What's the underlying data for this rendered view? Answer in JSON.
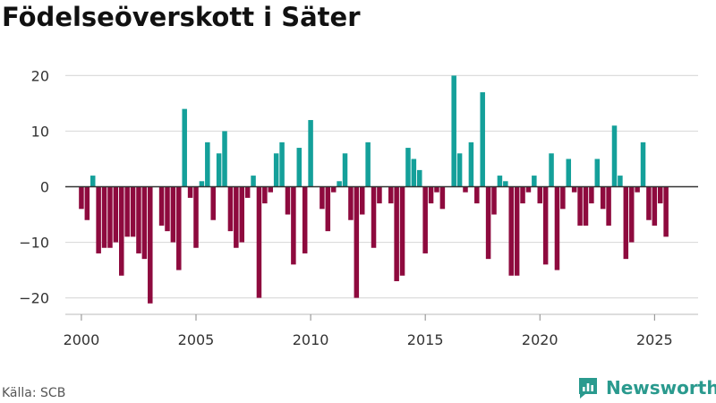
{
  "title": "Födelseöverskott i Säter",
  "source": "Källa: SCB",
  "brand": {
    "name": "Newsworthy",
    "logo_icon": "newsworthy-logo-icon"
  },
  "colors": {
    "positive": "#14a09a",
    "negative": "#8e0a3e",
    "grid": "#dcdcdc",
    "zero_line": "#333333",
    "brand": "#2a9a8e"
  },
  "chart_data": {
    "type": "bar",
    "title": "Födelseöverskott i Säter",
    "xlabel": "",
    "ylabel": "",
    "x_start": 2000.0,
    "x_step": 0.25,
    "xlim": [
      1999.3,
      2026.9
    ],
    "ylim": [
      -22,
      22
    ],
    "yticks": [
      -20,
      -10,
      0,
      10,
      20
    ],
    "ytick_labels": [
      "−20",
      "−10",
      "0",
      "10",
      "20"
    ],
    "xticks": [
      2000,
      2005,
      2010,
      2015,
      2020,
      2025
    ],
    "xtick_labels": [
      "2000",
      "2005",
      "2010",
      "2015",
      "2020",
      "2025"
    ],
    "values": [
      -4,
      -6,
      2,
      -12,
      -11,
      -11,
      -10,
      -16,
      -9,
      -9,
      -12,
      -13,
      -21,
      0,
      -7,
      -8,
      -10,
      -15,
      14,
      -2,
      -11,
      1,
      8,
      -6,
      6,
      10,
      -8,
      -11,
      -10,
      -2,
      2,
      -20,
      -3,
      -1,
      6,
      8,
      -5,
      -14,
      7,
      -12,
      12,
      0,
      -4,
      -8,
      -1,
      1,
      6,
      -6,
      -20,
      -5,
      8,
      -11,
      -3,
      0,
      -3,
      -17,
      -16,
      7,
      5,
      3,
      -12,
      -3,
      -1,
      -4,
      0,
      20,
      6,
      -1,
      8,
      -3,
      17,
      -13,
      -5,
      2,
      1,
      -16,
      -16,
      -3,
      -1,
      2,
      -3,
      -14,
      6,
      -15,
      -4,
      5,
      -1,
      -7,
      -7,
      -3,
      5,
      -4,
      -7,
      11,
      2,
      -13,
      -10,
      -1,
      8,
      -6,
      -7,
      -3,
      -9
    ]
  }
}
